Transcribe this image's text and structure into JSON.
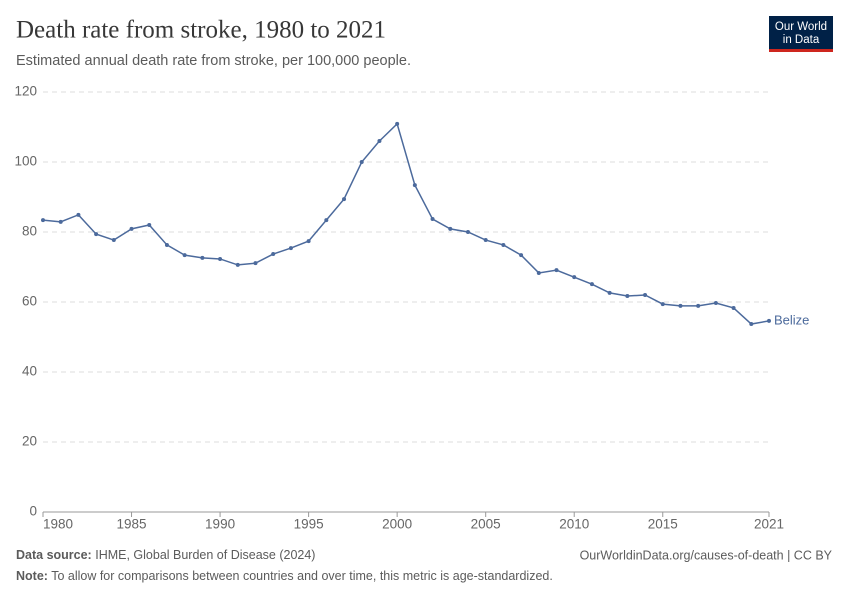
{
  "chart_data": {
    "type": "line",
    "title": "Death rate from stroke, 1980 to 2021",
    "subtitle": "Estimated annual death rate from stroke, per 100,000 people.",
    "x": [
      1980,
      1981,
      1982,
      1983,
      1984,
      1985,
      1986,
      1987,
      1988,
      1989,
      1990,
      1991,
      1992,
      1993,
      1994,
      1995,
      1996,
      1997,
      1998,
      1999,
      2000,
      2001,
      2002,
      2003,
      2004,
      2005,
      2006,
      2007,
      2008,
      2009,
      2010,
      2011,
      2012,
      2013,
      2014,
      2015,
      2016,
      2017,
      2018,
      2019,
      2020,
      2021
    ],
    "series": [
      {
        "name": "Belize",
        "color": "#4c6a9c",
        "values": [
          83.4,
          82.9,
          84.9,
          79.4,
          77.7,
          80.9,
          82.0,
          76.3,
          73.4,
          72.6,
          72.3,
          70.6,
          71.1,
          73.7,
          75.4,
          77.4,
          83.4,
          89.4,
          100,
          106,
          110.9,
          93.4,
          83.7,
          80.9,
          80,
          77.7,
          76.3,
          73.4,
          68.3,
          69.1,
          67.1,
          65.1,
          62.6,
          61.7,
          62,
          59.4,
          58.9,
          58.9,
          59.7,
          58.3,
          53.7,
          54.6
        ]
      }
    ],
    "xlim": [
      1980,
      2021
    ],
    "xticks": [
      1980,
      1985,
      1990,
      1995,
      2000,
      2005,
      2010,
      2015,
      2021
    ],
    "ylim": [
      0,
      120
    ],
    "yticks": [
      0,
      20,
      40,
      60,
      80,
      100,
      120
    ],
    "grid": true
  },
  "logo": [
    "Our World",
    "in Data"
  ],
  "footer": {
    "source_label": "Data source:",
    "source": "IHME, Global Burden of Disease (2024)",
    "url": "OurWorldinData.org/causes-of-death | CC BY",
    "note_label": "Note:",
    "note": "To allow for comparisons between countries and over time, this metric is age-standardized."
  }
}
